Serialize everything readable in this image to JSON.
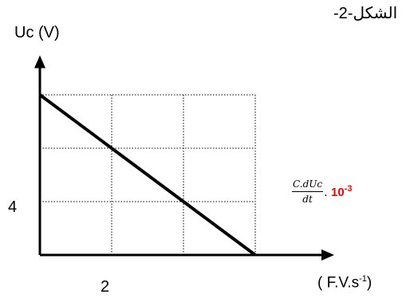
{
  "figure_title": "الشكل-2-",
  "y_axis_label": "Uc (V)",
  "y_tick_label": "4",
  "x_tick_label": "2",
  "x_axis_label": {
    "numerator": "C.dUc",
    "denominator": "dt",
    "multiplier_prefix": ". ",
    "multiplier_base": "10",
    "multiplier_exponent": "-3"
  },
  "x_unit_label": {
    "base": "( F.V.s",
    "exponent": "-1",
    "close": ")"
  },
  "colors": {
    "axis": "#000000",
    "grid": "#000000",
    "line": "#000000",
    "multiplier": "#ff0000"
  },
  "chart_data": {
    "type": "line",
    "x": [
      0,
      6
    ],
    "y": [
      12,
      0
    ],
    "xlim": [
      0,
      6.6
    ],
    "ylim": [
      0,
      14
    ],
    "x_gridlines": [
      2,
      4,
      6
    ],
    "y_gridlines": [
      4,
      8,
      12
    ],
    "grid": true,
    "grid_style": "dotted",
    "title": "الشكل-2-",
    "xlabel": "C.dUc/dt . 10^-3 ( F.V.s^-1)",
    "ylabel": "Uc (V)"
  }
}
